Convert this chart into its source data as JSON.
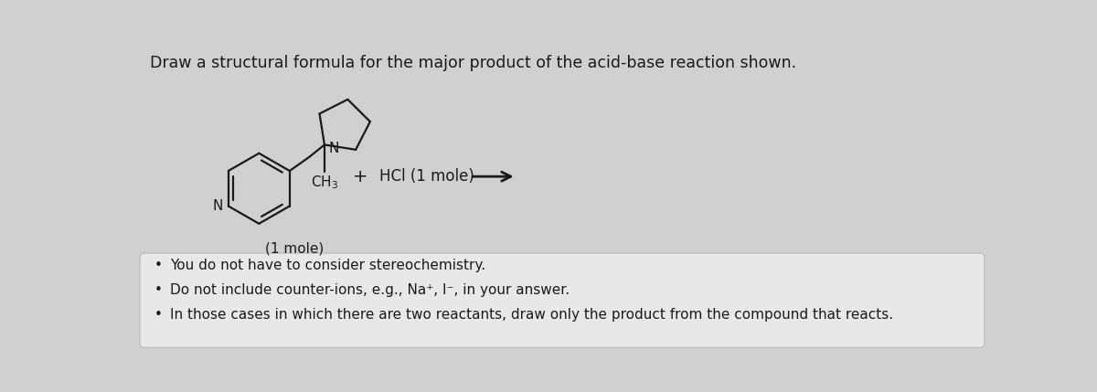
{
  "title": "Draw a structural formula for the major product of the acid-base reaction shown.",
  "title_fontsize": 12.5,
  "background_color": "#d0d0d0",
  "main_bg": "#d8d8d8",
  "box_bg": "#e8e8e8",
  "box_border": "#bbbbbb",
  "hcl_text": "HCl (1 mole)",
  "mole_text": "(1 mole)",
  "bullet_lines": [
    "You do not have to consider stereochemistry.",
    "Do not include counter-ions, e.g., Na⁺, I⁻, in your answer.",
    "In those cases in which there are two reactants, draw only the product from the compound that reacts."
  ],
  "line_color": "#1a1a1a",
  "text_color": "#1a1a1a",
  "line_width": 1.6
}
